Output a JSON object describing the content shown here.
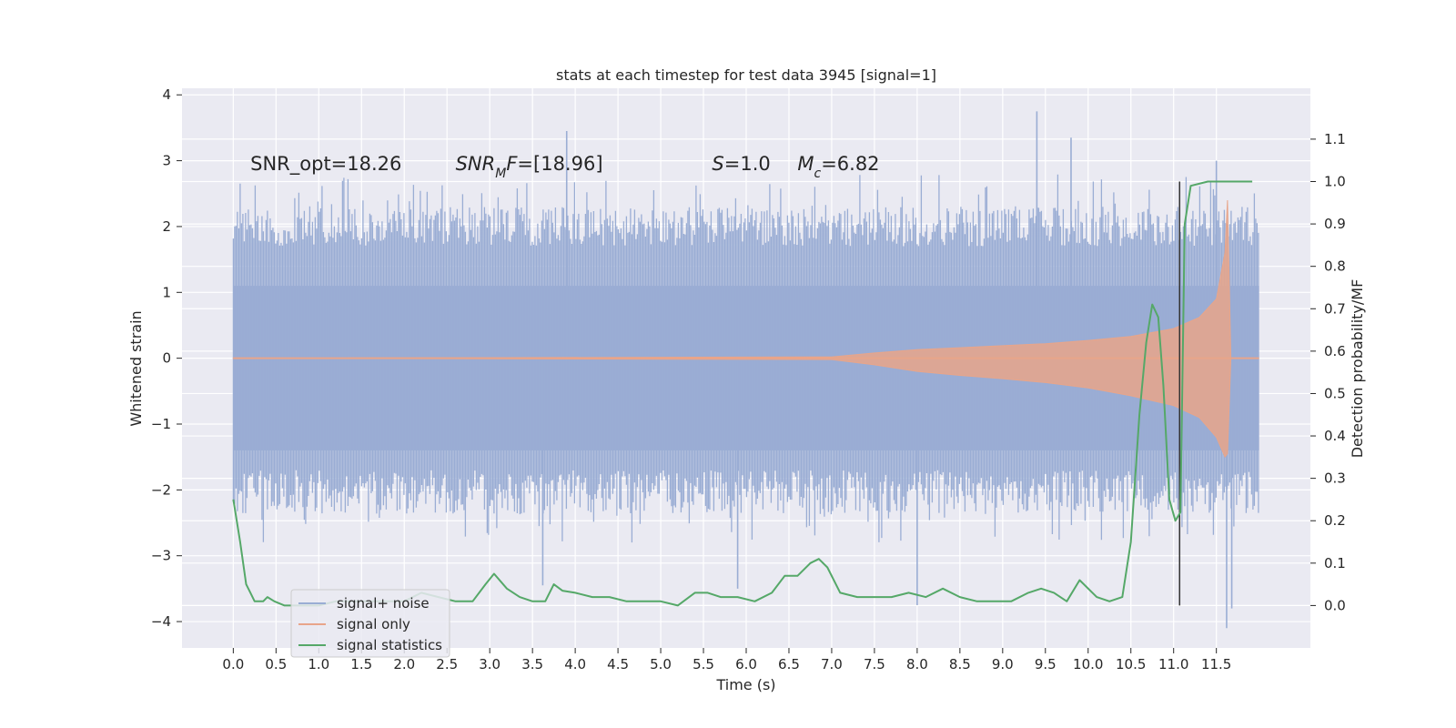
{
  "chart_data": {
    "type": "line",
    "title": "stats at each timestep for test data 3945 [signal=1]",
    "xlabel": "Time (s)",
    "ylabel": "Whitened strain",
    "y2label": "Detection probability/MF",
    "xlim": [
      -0.6,
      12.6
    ],
    "ylim": [
      -4.4,
      4.1
    ],
    "y2lim": [
      -0.1,
      1.22
    ],
    "x_ticks": [
      0.0,
      0.5,
      1.0,
      1.5,
      2.0,
      2.5,
      3.0,
      3.5,
      4.0,
      4.5,
      5.0,
      5.5,
      6.0,
      6.5,
      7.0,
      7.5,
      8.0,
      8.5,
      9.0,
      9.5,
      10.0,
      10.5,
      11.0,
      11.5
    ],
    "x_tick_labels": [
      "0.0",
      "0.5",
      "1.0",
      "1.5",
      "2.0",
      "2.5",
      "3.0",
      "3.5",
      "4.0",
      "4.5",
      "5.0",
      "5.5",
      "6.0",
      "6.5",
      "7.0",
      "7.5",
      "8.0",
      "8.5",
      "9.0",
      "9.5",
      "10.0",
      "10.5",
      "11.0",
      "11.5"
    ],
    "y_ticks": [
      4,
      3,
      2,
      1,
      0,
      -1,
      -2,
      -3,
      -4
    ],
    "y_tick_labels": [
      "4",
      "3",
      "2",
      "1",
      "0",
      "−1",
      "−2",
      "−3",
      "−4"
    ],
    "y2_ticks": [
      1.1,
      1.0,
      0.9,
      0.8,
      0.7,
      0.6,
      0.5,
      0.4,
      0.3,
      0.2,
      0.1,
      0.0
    ],
    "y2_tick_labels": [
      "1.1",
      "1.0",
      "0.9",
      "0.8",
      "0.7",
      "0.6",
      "0.5",
      "0.4",
      "0.3",
      "0.2",
      "0.1",
      "0.0"
    ],
    "annotations": [
      {
        "name": "snr-opt",
        "x": 0.2,
        "y": 2.95,
        "parts": [
          {
            "text": "SNR_opt=18.26"
          }
        ]
      },
      {
        "name": "snr-mf",
        "x": 2.6,
        "y": 2.95,
        "parts": [
          {
            "text": "SNR",
            "italic": true
          },
          {
            "text": "M",
            "italic": true,
            "sub": true
          },
          {
            "text": "F",
            "italic": true
          },
          {
            "text": "=[18.96]"
          }
        ]
      },
      {
        "name": "s-value",
        "x": 5.6,
        "y": 2.95,
        "parts": [
          {
            "text": "S",
            "italic": true
          },
          {
            "text": "=1.0"
          }
        ]
      },
      {
        "name": "mc-value",
        "x": 6.6,
        "y": 2.95,
        "parts": [
          {
            "text": "M",
            "italic": true
          },
          {
            "text": "c",
            "italic": true,
            "sub": true
          },
          {
            "text": "=6.82"
          }
        ]
      }
    ],
    "vertical_marker": {
      "x": 11.07,
      "y2_range": [
        0.0,
        1.0
      ],
      "color": "#333333"
    },
    "legend": {
      "placement": "lower-left",
      "entries": [
        {
          "label": "signal+ noise",
          "color": "#9aadd4"
        },
        {
          "label": "signal only",
          "color": "#e8a58a"
        },
        {
          "label": "signal statistics",
          "color": "#55a868"
        }
      ]
    },
    "series": [
      {
        "name": "signal+ noise",
        "kind": "noise-band",
        "color": "#9aadd4",
        "x_range": [
          0.0,
          12.0
        ],
        "inner_band": [
          -1.4,
          1.1
        ],
        "typical_peak_range": [
          1.7,
          2.8
        ],
        "max_y": 3.75,
        "min_y": -4.1,
        "notable_peaks": [
          [
            3.9,
            3.45
          ],
          [
            9.4,
            3.75
          ],
          [
            9.8,
            3.35
          ],
          [
            11.5,
            3.0
          ],
          [
            3.62,
            -3.45
          ],
          [
            8.0,
            -3.75
          ],
          [
            11.62,
            -4.1
          ],
          [
            11.68,
            -3.8
          ],
          [
            5.9,
            -3.5
          ]
        ]
      },
      {
        "name": "signal only",
        "kind": "chirp-envelope",
        "color": "#e8a58a",
        "envelope": {
          "x": [
            0.0,
            7.0,
            7.5,
            8.0,
            8.5,
            9.0,
            9.5,
            10.0,
            10.5,
            11.0,
            11.3,
            11.5,
            11.6,
            11.63,
            11.67,
            12.0
          ],
          "upper": [
            0.0,
            0.02,
            0.08,
            0.13,
            0.16,
            0.19,
            0.22,
            0.27,
            0.33,
            0.45,
            0.62,
            0.9,
            1.6,
            2.4,
            0.0,
            0.0
          ],
          "lower": [
            0.0,
            -0.02,
            -0.1,
            -0.2,
            -0.26,
            -0.31,
            -0.37,
            -0.45,
            -0.57,
            -0.72,
            -0.9,
            -1.2,
            -1.5,
            -1.45,
            0.0,
            0.0
          ]
        }
      },
      {
        "name": "signal statistics",
        "kind": "line",
        "axis": "right",
        "color": "#55a868",
        "x": [
          0.0,
          0.08,
          0.15,
          0.2,
          0.25,
          0.35,
          0.4,
          0.48,
          0.6,
          0.8,
          1.0,
          1.2,
          1.4,
          1.6,
          1.8,
          2.0,
          2.2,
          2.4,
          2.6,
          2.8,
          2.95,
          3.05,
          3.2,
          3.35,
          3.5,
          3.65,
          3.75,
          3.85,
          4.0,
          4.2,
          4.4,
          4.6,
          4.8,
          5.0,
          5.2,
          5.4,
          5.55,
          5.7,
          5.9,
          6.1,
          6.3,
          6.45,
          6.6,
          6.75,
          6.85,
          6.95,
          7.1,
          7.3,
          7.5,
          7.7,
          7.9,
          8.1,
          8.3,
          8.5,
          8.7,
          8.9,
          9.1,
          9.3,
          9.45,
          9.6,
          9.75,
          9.9,
          10.1,
          10.25,
          10.4,
          10.5,
          10.6,
          10.68,
          10.75,
          10.82,
          10.88,
          10.95,
          11.02,
          11.08,
          11.13,
          11.2,
          11.4,
          11.6,
          11.8,
          11.92
        ],
        "y": [
          0.25,
          0.15,
          0.05,
          0.03,
          0.01,
          0.01,
          0.02,
          0.01,
          0.0,
          0.0,
          0.0,
          0.01,
          0.01,
          0.01,
          0.01,
          0.01,
          0.03,
          0.02,
          0.01,
          0.01,
          0.05,
          0.075,
          0.04,
          0.02,
          0.01,
          0.01,
          0.05,
          0.035,
          0.03,
          0.02,
          0.02,
          0.01,
          0.01,
          0.01,
          0.0,
          0.03,
          0.03,
          0.02,
          0.02,
          0.01,
          0.03,
          0.07,
          0.07,
          0.1,
          0.11,
          0.09,
          0.03,
          0.02,
          0.02,
          0.02,
          0.03,
          0.02,
          0.04,
          0.02,
          0.01,
          0.01,
          0.01,
          0.03,
          0.04,
          0.03,
          0.01,
          0.06,
          0.02,
          0.01,
          0.02,
          0.15,
          0.45,
          0.62,
          0.71,
          0.68,
          0.52,
          0.25,
          0.2,
          0.22,
          0.9,
          0.99,
          1.0,
          1.0,
          1.0,
          1.0
        ]
      }
    ]
  }
}
